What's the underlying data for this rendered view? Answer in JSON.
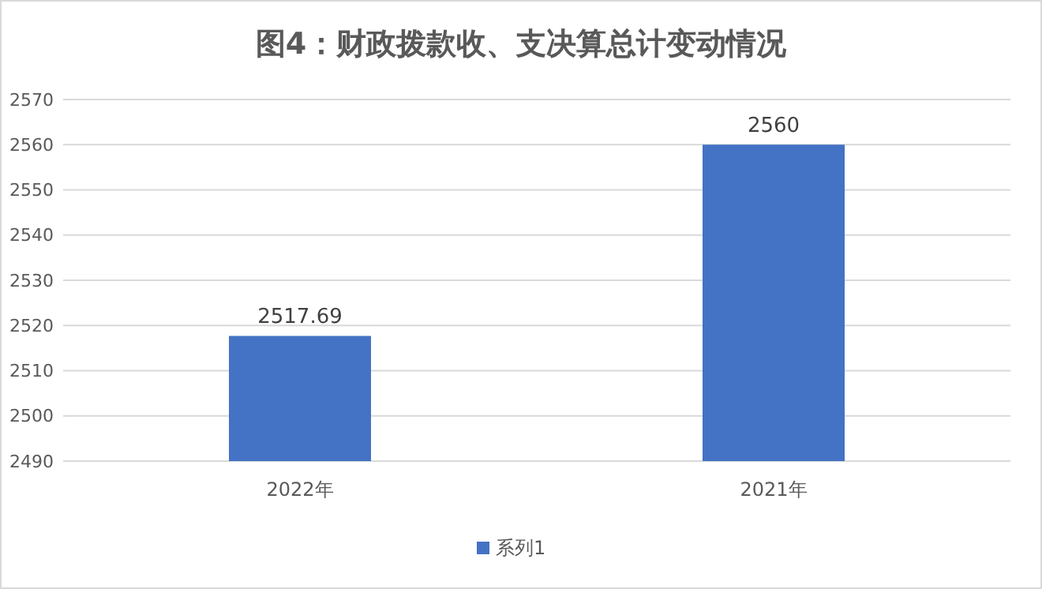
{
  "chart_data": {
    "type": "bar",
    "title": "图4：财政拨款收、支决算总计变动情况",
    "categories": [
      "2022年",
      "2021年"
    ],
    "series": [
      {
        "name": "系列1",
        "color": "#4472c4",
        "values": [
          2517.69,
          2560
        ]
      }
    ],
    "ylim": [
      2490,
      2570
    ],
    "yticks": [
      2490,
      2500,
      2510,
      2520,
      2530,
      2540,
      2550,
      2560,
      2570
    ],
    "grid": "y",
    "data_labels": true,
    "legend": "bottom"
  }
}
